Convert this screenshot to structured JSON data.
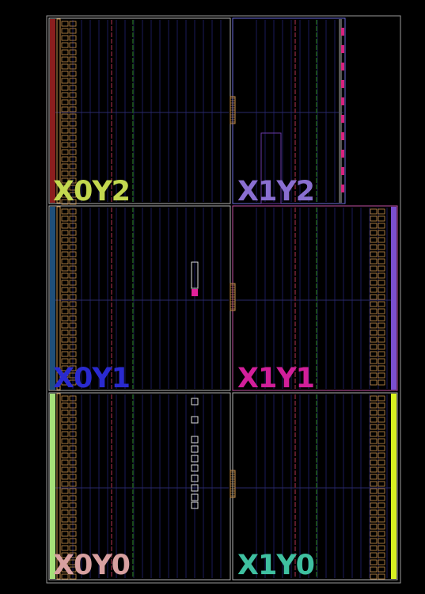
{
  "device": {
    "regions": [
      {
        "id": "X0Y2",
        "label": "X0Y2",
        "label_color": "#c3d84f",
        "side_strip_color": "#8b1e1e",
        "border_color": "#b0b0b0"
      },
      {
        "id": "X1Y2",
        "label": "X1Y2",
        "label_color": "#8a6fd1",
        "side_strip_color": "#d8227f",
        "border_color": "#6a6ad8"
      },
      {
        "id": "X0Y1",
        "label": "X0Y1",
        "label_color": "#2a2ad0",
        "side_strip_color": "#1f4f7a",
        "border_color": "#b0b0b0"
      },
      {
        "id": "X1Y1",
        "label": "X1Y1",
        "label_color": "#d21f9a",
        "side_strip_color": "#7a4fcf",
        "border_color": "#c04fa0"
      },
      {
        "id": "X0Y0",
        "label": "X0Y0",
        "label_color": "#d8a0a0",
        "side_strip_color": "#a5e07a",
        "border_color": "#b0b0b0"
      },
      {
        "id": "X1Y0",
        "label": "X1Y0",
        "label_color": "#3fc0a0",
        "side_strip_color": "#d8f020",
        "border_color": "#b0b0b0"
      }
    ],
    "colors": {
      "background": "#000000",
      "outer_border": "#9a9a9a",
      "io_column": "#c8904a",
      "clock_spine": "#c8904a",
      "grid_line": "#1a1a5a",
      "dsp_column": "#5a1a2a",
      "bram_column": "#1a4a1a",
      "highlight": "#e0209a"
    }
  }
}
